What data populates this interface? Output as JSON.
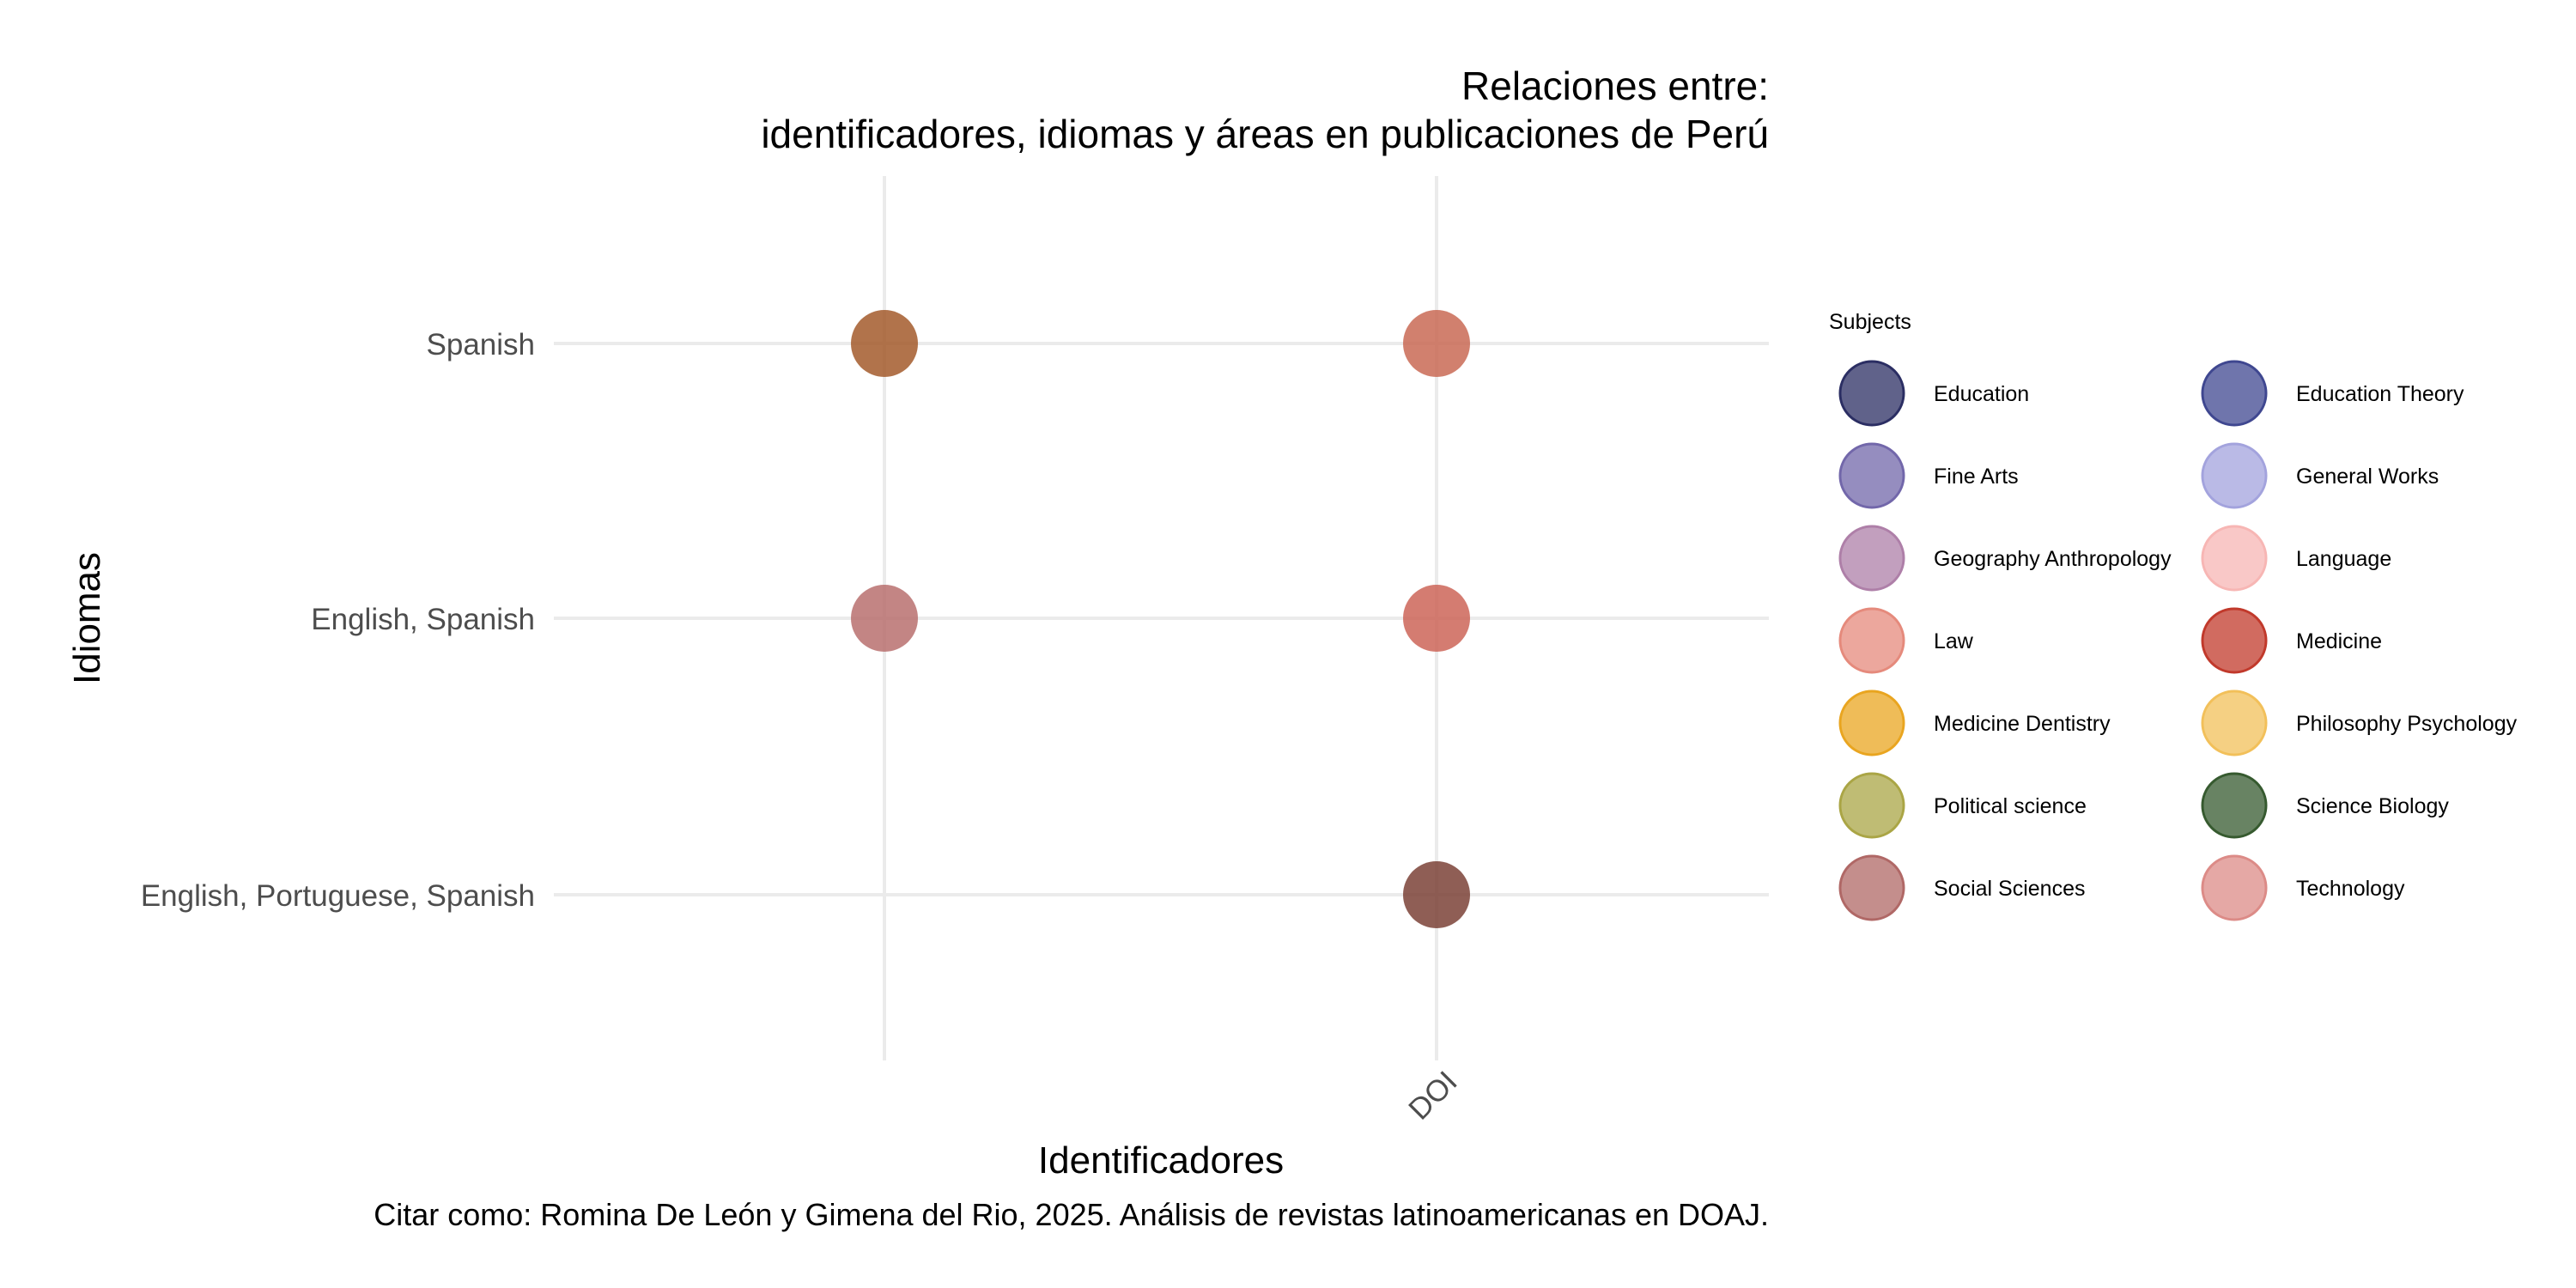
{
  "chart_data": {
    "type": "scatter",
    "title": "Relaciones entre:",
    "subtitle": "identificadores, idiomas y áreas en publicaciones de Perú",
    "xlabel": "Identificadores",
    "ylabel": "Idiomas",
    "caption": "Citar como: Romina De León y Gimena del Rio, 2025. Análisis de revistas latinoamericanas en DOAJ.",
    "x_categories": [
      "",
      "DOI"
    ],
    "y_categories": [
      "English, Portuguese, Spanish",
      "English, Spanish",
      "Spanish"
    ],
    "grid": true,
    "legend_position": "right",
    "legend": {
      "title": "Subjects",
      "items": [
        {
          "label": "Education",
          "color": "#2b2e63"
        },
        {
          "label": "Education Theory",
          "color": "#3f4790"
        },
        {
          "label": "Fine Arts",
          "color": "#7267aa"
        },
        {
          "label": "General Works",
          "color": "#a3a3dd"
        },
        {
          "label": "Geography Anthropology",
          "color": "#ae7fa8"
        },
        {
          "label": "Language",
          "color": "#f7b6b4"
        },
        {
          "label": "Law",
          "color": "#e58a7c"
        },
        {
          "label": "Medicine",
          "color": "#c1392b"
        },
        {
          "label": "Medicine Dentistry",
          "color": "#e9a520"
        },
        {
          "label": "Philosophy Psychology",
          "color": "#f2c05a"
        },
        {
          "label": "Political science",
          "color": "#aaa545"
        },
        {
          "label": "Science Biology",
          "color": "#365a2f"
        },
        {
          "label": "Social Sciences",
          "color": "#b06866"
        },
        {
          "label": "Technology",
          "color": "#dc8b87"
        }
      ]
    },
    "points": [
      {
        "x": "",
        "y": "Spanish",
        "color": "#a35a2c"
      },
      {
        "x": "DOI",
        "y": "Spanish",
        "color": "#c96a55"
      },
      {
        "x": "",
        "y": "English, Spanish",
        "color": "#b9706f"
      },
      {
        "x": "DOI",
        "y": "English, Spanish",
        "color": "#cd6558"
      },
      {
        "x": "DOI",
        "y": "English, Portuguese, Spanish",
        "color": "#7b4237"
      }
    ]
  }
}
